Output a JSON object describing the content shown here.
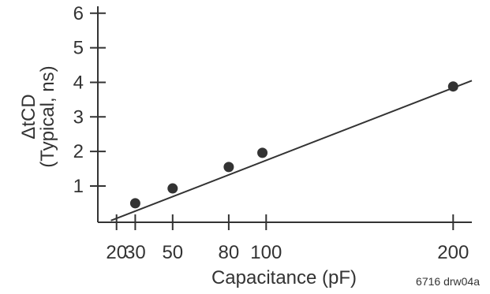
{
  "chart_data": {
    "type": "scatter",
    "title": "",
    "xlabel": "Capacitance (pF)",
    "ylabel_lines": [
      "ΔtCD",
      "(Typical, ns)"
    ],
    "x_ticks": [
      20,
      30,
      50,
      80,
      100,
      200
    ],
    "x_tick_labels": [
      "20",
      "30",
      "50",
      "80",
      "100",
      "200"
    ],
    "y_ticks": [
      1,
      2,
      3,
      4,
      5,
      6
    ],
    "y_tick_labels": [
      "1",
      "2",
      "3",
      "4",
      "5",
      "6"
    ],
    "xlim": [
      10,
      210
    ],
    "ylim": [
      -0.05,
      6.2
    ],
    "grid": false,
    "series": [
      {
        "x": [
          30,
          50,
          80,
          98,
          200
        ],
        "y": [
          0.5,
          0.93,
          1.55,
          1.96,
          3.88
        ]
      }
    ],
    "trend_line": {
      "x": [
        17,
        210
      ],
      "y": [
        0.0,
        4.05
      ]
    },
    "colors": {
      "ink": "#333333"
    }
  },
  "footnote": "6716 drw04a"
}
